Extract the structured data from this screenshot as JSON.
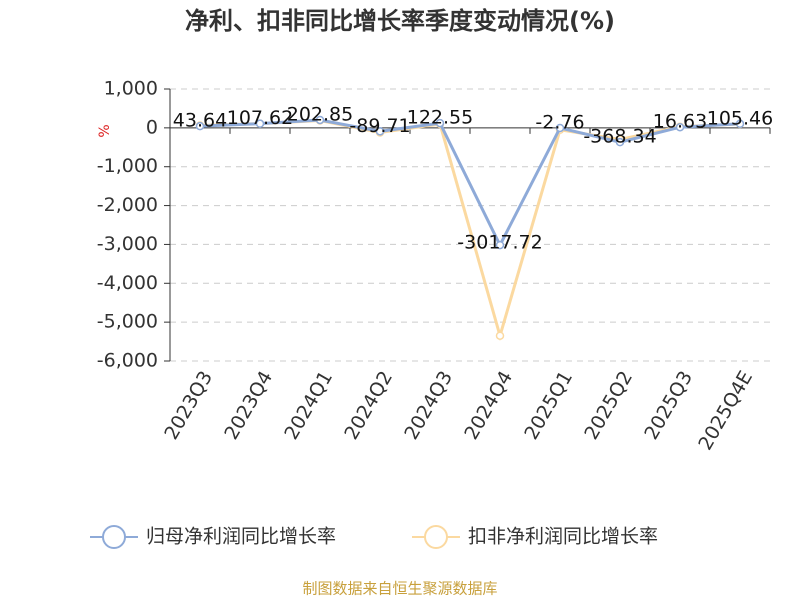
{
  "chart_data": {
    "type": "line",
    "title": "净利、扣非同比增长率季度变动情况(%)",
    "y_label": "%",
    "categories": [
      "2023Q3",
      "2023Q4",
      "2024Q1",
      "2024Q2",
      "2024Q3",
      "2024Q4",
      "2025Q1",
      "2025Q2",
      "2025Q3",
      "2025Q4E"
    ],
    "series": [
      {
        "name": "归母净利润同比增长率",
        "color": "#8eaad8",
        "values": [
          43.64,
          107.62,
          202.85,
          -89.71,
          122.55,
          -3017.72,
          -2.76,
          -368.34,
          16.63,
          105.46
        ]
      },
      {
        "name": "扣非净利润同比增长率",
        "color": "#fbd9a0",
        "values": [
          60,
          110,
          190,
          -120,
          100,
          -5350,
          -50,
          -300,
          30,
          100
        ]
      }
    ],
    "ylim": [
      -6000,
      1000
    ],
    "yticks": [
      {
        "value": 1000,
        "label": "1,000"
      },
      0,
      {
        "value": -1000,
        "label": "-1,000"
      },
      {
        "value": -2000,
        "label": "-2,000"
      },
      {
        "value": -3000,
        "label": "-3,000"
      },
      {
        "value": -4000,
        "label": "-4,000"
      },
      {
        "value": -5000,
        "label": "-5,000"
      },
      {
        "value": -6000,
        "label": "-6,000"
      }
    ],
    "grid": true,
    "legend": "bottom",
    "source": "制图数据来自恒生聚源数据库"
  }
}
